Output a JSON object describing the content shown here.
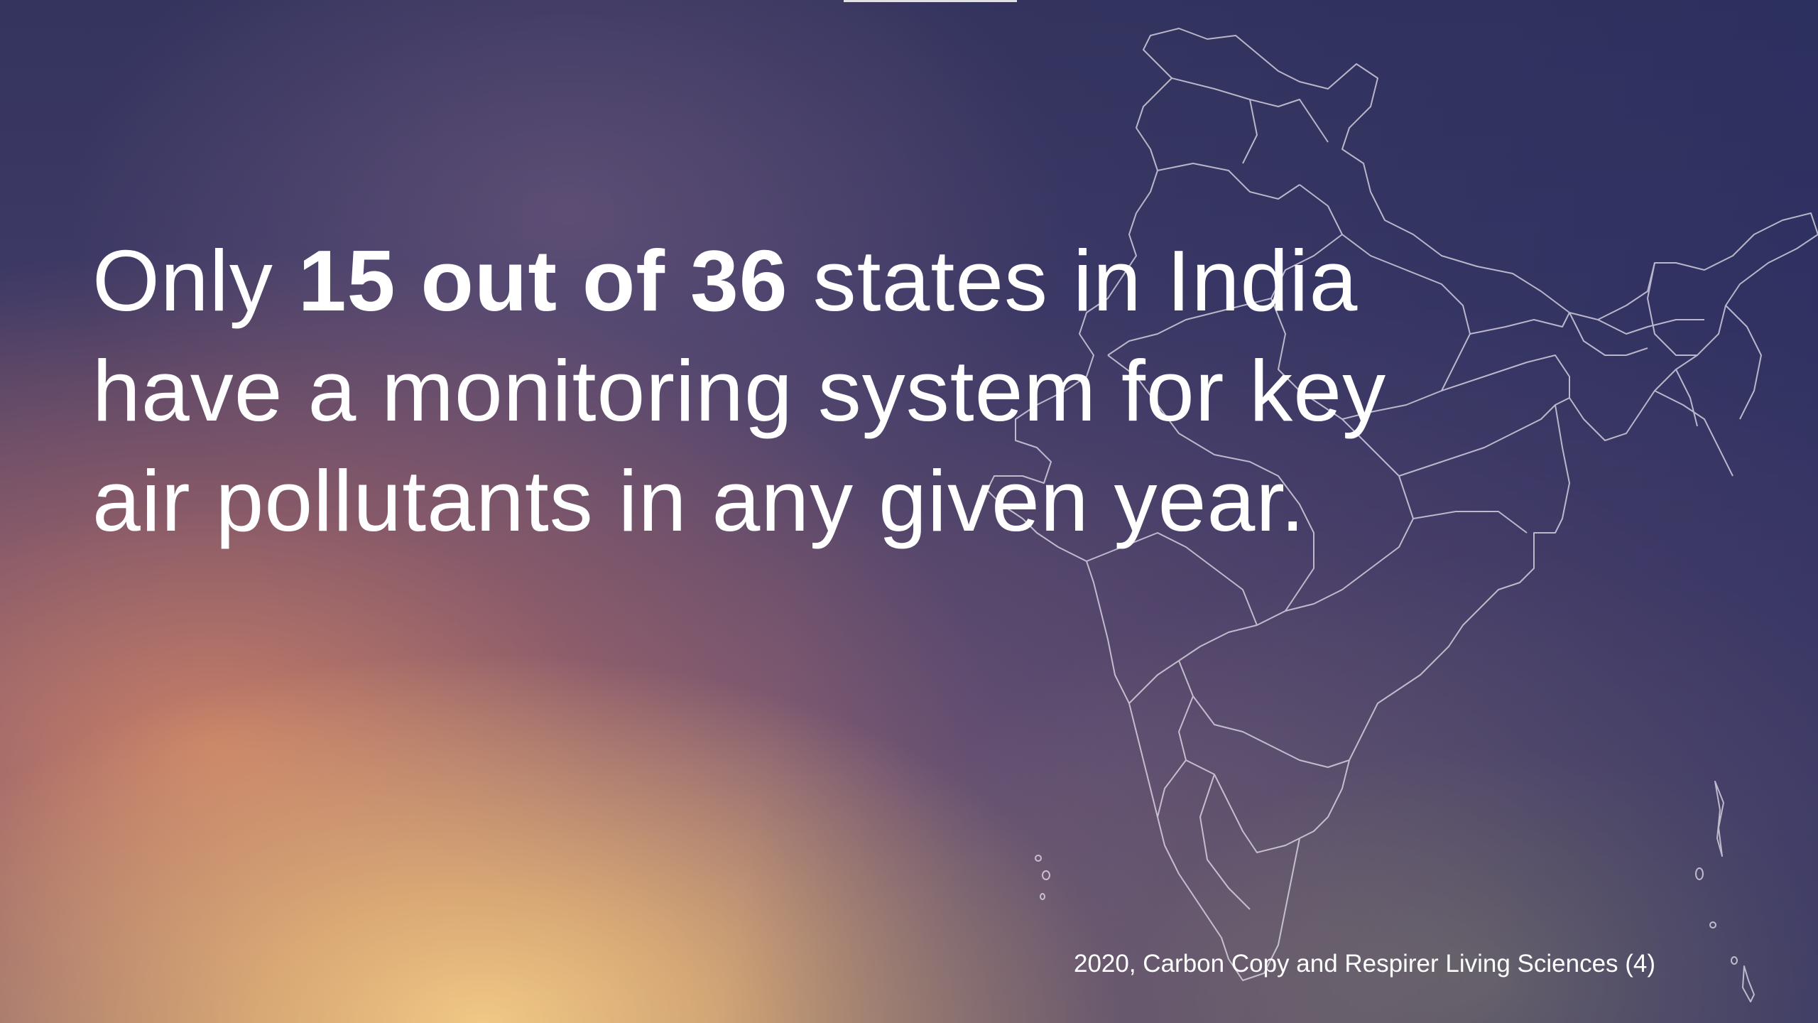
{
  "slide": {
    "headline": {
      "before": "Only ",
      "emphasis": "15 out of 36",
      "after": " states in India have a monitoring system for key air pollutants in any given year."
    },
    "citation": "2020, Carbon Copy and Respirer Living Sciences (4)",
    "map_icon": "india-map-outline",
    "colors": {
      "text": "#ffffff",
      "bg_top": "#34345e",
      "bg_glow": "#f6cd86",
      "bg_right": "#262c60"
    }
  }
}
